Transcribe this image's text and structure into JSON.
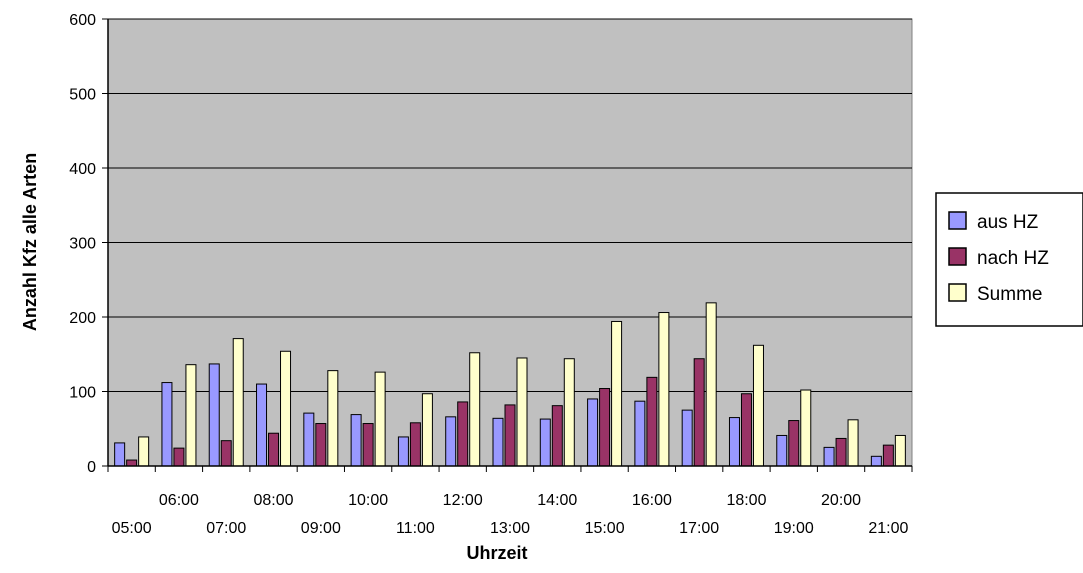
{
  "chart_data": {
    "type": "bar",
    "categories": [
      "05:00",
      "06:00",
      "07:00",
      "08:00",
      "09:00",
      "10:00",
      "11:00",
      "12:00",
      "13:00",
      "14:00",
      "15:00",
      "16:00",
      "17:00",
      "18:00",
      "19:00",
      "20:00",
      "21:00"
    ],
    "series": [
      {
        "name": "aus HZ",
        "color": "#9999ff",
        "values": [
          31,
          112,
          137,
          110,
          71,
          69,
          39,
          66,
          64,
          63,
          90,
          87,
          75,
          65,
          41,
          25,
          13
        ]
      },
      {
        "name": "nach HZ",
        "color": "#993366",
        "values": [
          8,
          24,
          34,
          44,
          57,
          57,
          58,
          86,
          82,
          81,
          104,
          119,
          144,
          97,
          61,
          37,
          28
        ]
      },
      {
        "name": "Summe",
        "color": "#ffffcc",
        "values": [
          39,
          136,
          171,
          154,
          128,
          126,
          97,
          152,
          145,
          144,
          194,
          206,
          219,
          162,
          102,
          62,
          41
        ]
      }
    ],
    "xlabel": "Uhrzeit",
    "ylabel": "Anzahl Kfz alle Arten",
    "ylim": [
      0,
      600
    ],
    "yticks": [
      0,
      100,
      200,
      300,
      400,
      500,
      600
    ],
    "grid": true,
    "plot_background": "#c0c0c0",
    "legend_position": "right"
  }
}
